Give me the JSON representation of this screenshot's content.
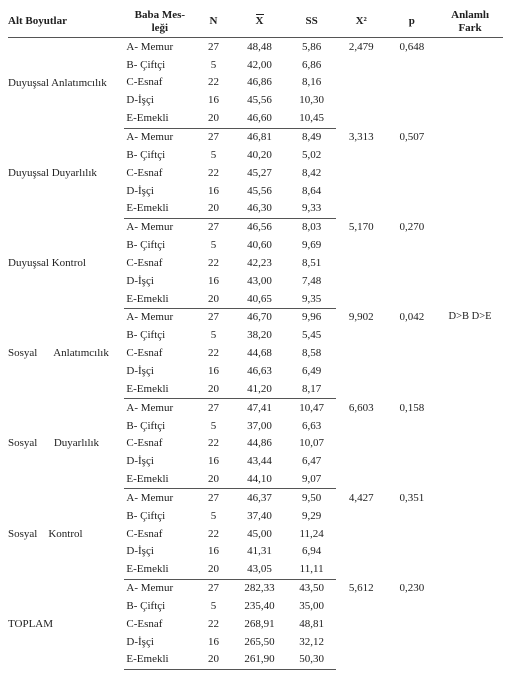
{
  "columns": {
    "alt": "Alt Boyutlar",
    "occ": "Baba Mes-\nleği",
    "n": "N",
    "mean": "X",
    "ss": "SS",
    "x2": "X²",
    "p": "p",
    "fark": "Anlamlı\nFark"
  },
  "occupations": [
    "A- Memur",
    "B- Çiftçi",
    "C-Esnaf",
    "D-İşçi",
    "E-Emekli"
  ],
  "n": [
    "27",
    "5",
    "22",
    "16",
    "20"
  ],
  "groups": [
    {
      "label": "Duyuşsal Anlatımcılık",
      "mean": [
        "48,48",
        "42,00",
        "46,86",
        "45,56",
        "46,60"
      ],
      "ss": [
        "5,86",
        "6,86",
        "8,16",
        "10,30",
        "10,45"
      ],
      "x2": "2,479",
      "p": "0,648",
      "fark": ""
    },
    {
      "label": "Duyuşsal Duyarlılık",
      "mean": [
        "46,81",
        "40,20",
        "45,27",
        "45,56",
        "46,30"
      ],
      "ss": [
        "8,49",
        "5,02",
        "8,42",
        "8,64",
        "9,33"
      ],
      "x2": "3,313",
      "p": "0,507",
      "fark": ""
    },
    {
      "label": "Duyuşsal Kontrol",
      "mean": [
        "46,56",
        "40,60",
        "42,23",
        "43,00",
        "40,65"
      ],
      "ss": [
        "8,03",
        "9,69",
        "8,51",
        "7,48",
        "9,35"
      ],
      "x2": "5,170",
      "p": "0,270",
      "fark": ""
    },
    {
      "label": "Sosyal      Anlatımcılık",
      "mean": [
        "46,70",
        "38,20",
        "44,68",
        "46,63",
        "41,20"
      ],
      "ss": [
        "9,96",
        "5,45",
        "8,58",
        "6,49",
        "8,17"
      ],
      "x2": "9,902",
      "p": "0,042",
      "fark": "D>B\nD>E"
    },
    {
      "label": "Sosyal      Duyarlılık",
      "mean": [
        "47,41",
        "37,00",
        "44,86",
        "43,44",
        "44,10"
      ],
      "ss": [
        "10,47",
        "6,63",
        "10,07",
        "6,47",
        "9,07"
      ],
      "x2": "6,603",
      "p": "0,158",
      "fark": ""
    },
    {
      "label": "Sosyal    Kontrol",
      "mean": [
        "46,37",
        "37,40",
        "45,00",
        "41,31",
        "43,05"
      ],
      "ss": [
        "9,50",
        "9,29",
        "11,24",
        "6,94",
        "11,11"
      ],
      "x2": "4,427",
      "p": "0,351",
      "fark": ""
    },
    {
      "label": "TOPLAM",
      "mean": [
        "282,33",
        "235,40",
        "268,91",
        "265,50",
        "261,90"
      ],
      "ss": [
        "43,50",
        "35,00",
        "48,81",
        "32,12",
        "50,30"
      ],
      "x2": "5,612",
      "p": "0,230",
      "fark": ""
    }
  ]
}
